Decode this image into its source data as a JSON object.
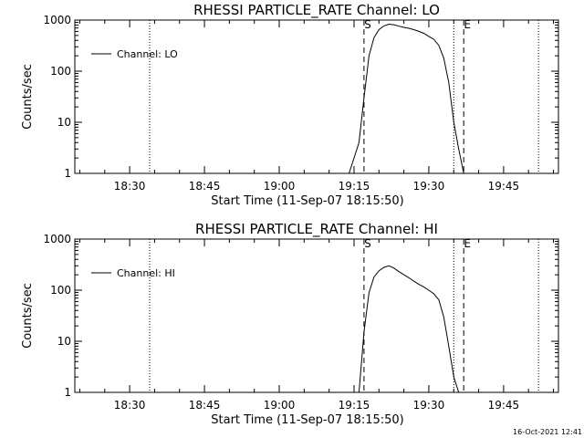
{
  "footer": {
    "timestamp": "16-Oct-2021 12:41"
  },
  "chart_data": [
    {
      "type": "line",
      "title": "RHESSI PARTICLE_RATE Channel: LO",
      "xlabel": "Start Time (11-Sep-07 18:15:50)",
      "ylabel": "Counts/sec",
      "yscale": "log",
      "ylim": [
        1,
        1000
      ],
      "xlim": [
        "18:19",
        "19:56"
      ],
      "x_ticks": [
        "18:30",
        "18:45",
        "19:00",
        "19:15",
        "19:30",
        "19:45"
      ],
      "y_ticks": [
        "1",
        "10",
        "100",
        "1000"
      ],
      "legend": {
        "position": "top-left",
        "entries": [
          "Channel: LO"
        ]
      },
      "markers": [
        {
          "label": "S",
          "x": "19:17",
          "style": "dashed"
        },
        {
          "label": "E",
          "x": "19:37",
          "style": "dashed"
        }
      ],
      "dotted_lines": [
        "18:34",
        "19:35",
        "19:52"
      ],
      "series": [
        {
          "name": "Channel: LO",
          "x": [
            "19:14",
            "19:15",
            "19:16",
            "19:17",
            "19:18",
            "19:19",
            "19:20",
            "19:21",
            "19:22",
            "19:23",
            "19:24",
            "19:25",
            "19:26",
            "19:27",
            "19:28",
            "19:29",
            "19:30",
            "19:31",
            "19:32",
            "19:33",
            "19:34",
            "19:35",
            "19:36",
            "19:37"
          ],
          "y": [
            1,
            2,
            4,
            30,
            200,
            450,
            650,
            770,
            830,
            810,
            760,
            720,
            690,
            650,
            600,
            550,
            480,
            420,
            320,
            180,
            60,
            10,
            3,
            1
          ]
        }
      ]
    },
    {
      "type": "line",
      "title": "RHESSI PARTICLE_RATE Channel: HI",
      "xlabel": "Start Time (11-Sep-07 18:15:50)",
      "ylabel": "Counts/sec",
      "yscale": "log",
      "ylim": [
        1,
        1000
      ],
      "xlim": [
        "18:19",
        "19:56"
      ],
      "x_ticks": [
        "18:30",
        "18:45",
        "19:00",
        "19:15",
        "19:30",
        "19:45"
      ],
      "y_ticks": [
        "1",
        "10",
        "100",
        "1000"
      ],
      "legend": {
        "position": "top-left",
        "entries": [
          "Channel: HI"
        ]
      },
      "markers": [
        {
          "label": "S",
          "x": "19:17",
          "style": "dashed"
        },
        {
          "label": "E",
          "x": "19:37",
          "style": "dashed"
        }
      ],
      "dotted_lines": [
        "18:34",
        "19:35",
        "19:52"
      ],
      "series": [
        {
          "name": "Channel: HI",
          "x": [
            "19:16",
            "19:17",
            "19:18",
            "19:19",
            "19:20",
            "19:21",
            "19:22",
            "19:23",
            "19:24",
            "19:25",
            "19:26",
            "19:27",
            "19:28",
            "19:29",
            "19:30",
            "19:31",
            "19:32",
            "19:33",
            "19:34",
            "19:35",
            "19:36"
          ],
          "y": [
            1,
            15,
            90,
            180,
            240,
            280,
            300,
            270,
            230,
            200,
            175,
            150,
            130,
            115,
            100,
            85,
            65,
            30,
            8,
            2,
            1
          ]
        }
      ]
    }
  ]
}
